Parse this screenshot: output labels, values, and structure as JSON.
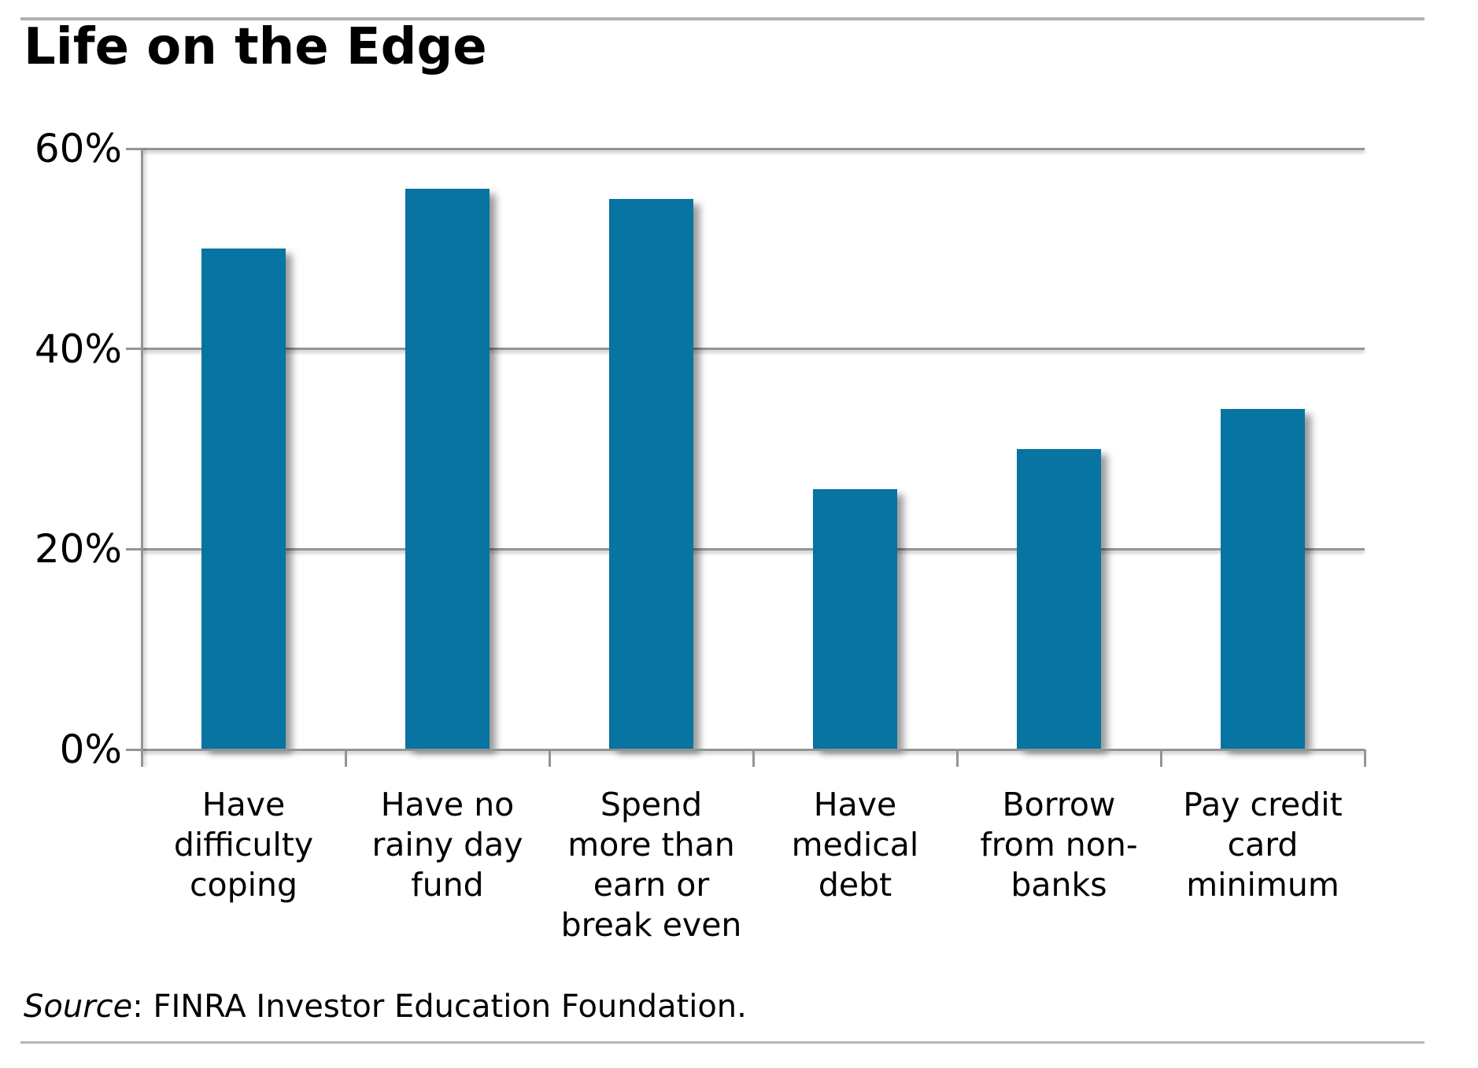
{
  "chart_data": {
    "type": "bar",
    "title": "Life on the Edge",
    "categories": [
      "Have difficulty coping",
      "Have no rainy day fund",
      "Spend more than earn or break even",
      "Have medical debt",
      "Borrow from non-banks",
      "Pay credit card minimum"
    ],
    "categories_multiline": [
      "Have\ndifficulty\ncoping",
      "Have no\nrainy day\nfund",
      "Spend\nmore than\nearn or\nbreak even",
      "Have\nmedical\ndebt",
      "Borrow\nfrom non-\nbanks",
      "Pay credit\ncard\nminimum"
    ],
    "values": [
      50,
      56,
      55,
      26,
      30,
      34
    ],
    "unit": "%",
    "xlabel": "",
    "ylabel": "",
    "ylim": [
      0,
      60
    ],
    "ytick_values": [
      60,
      40,
      20,
      0
    ],
    "ytick_labels": [
      "60%",
      "40%",
      "20%",
      "0%"
    ],
    "grid": true,
    "legend": "none",
    "bar_color": "#0774A1",
    "gridline_color": "#949494"
  },
  "source": {
    "label": "Source",
    "rest": ": FINRA Investor Education Foundation."
  }
}
